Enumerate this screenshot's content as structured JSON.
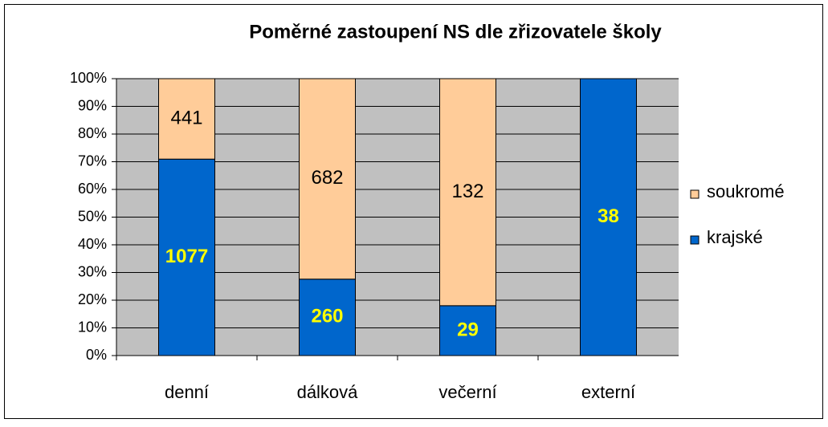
{
  "chart_data": {
    "type": "stacked_bar_100",
    "title": "Poměrné zastoupení NS dle zřizovatele školy",
    "categories": [
      "denní",
      "dálková",
      "večerní",
      "externí"
    ],
    "series": [
      {
        "name": "krajské",
        "color": "#0066cc",
        "values": [
          1077,
          260,
          29,
          38
        ]
      },
      {
        "name": "soukromé",
        "color": "#ffcc99",
        "values": [
          441,
          682,
          132,
          0
        ]
      }
    ],
    "ylim": [
      0,
      100
    ],
    "yticks": [
      {
        "value": 0,
        "label": "0%"
      },
      {
        "value": 10,
        "label": "10%"
      },
      {
        "value": 20,
        "label": "20%"
      },
      {
        "value": 30,
        "label": "30%"
      },
      {
        "value": 40,
        "label": "40%"
      },
      {
        "value": 50,
        "label": "50%"
      },
      {
        "value": 60,
        "label": "60%"
      },
      {
        "value": 70,
        "label": "70%"
      },
      {
        "value": 80,
        "label": "80%"
      },
      {
        "value": 90,
        "label": "90%"
      },
      {
        "value": 100,
        "label": "100%"
      }
    ],
    "grid": true,
    "legend": "right"
  }
}
